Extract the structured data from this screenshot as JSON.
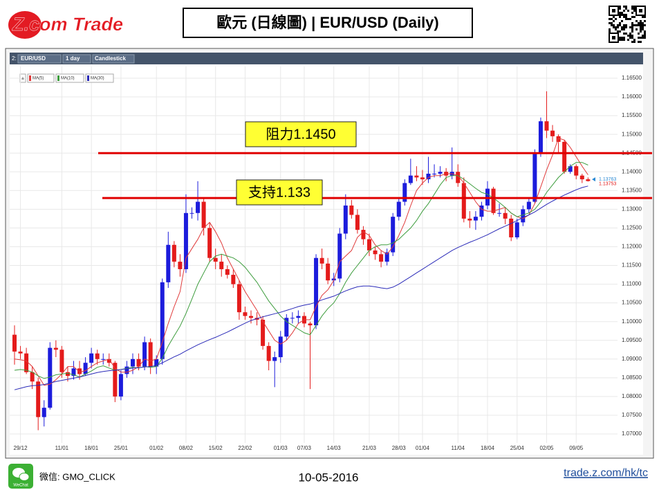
{
  "header": {
    "logo": "Z.com Trade",
    "title": "歐元 (日線圖) | EUR/USD (Daily)"
  },
  "footer": {
    "icon_label": "WeChat",
    "wechat": "微信: GMO_CLICK",
    "date": "10-05-2016",
    "url": "trade.z.com/hk/tc"
  },
  "chart_data": {
    "type": "candlestick",
    "toolbar": {
      "prefix": "2:",
      "symbol": "EUR/USD",
      "interval": "1 day",
      "style": "Candlestick"
    },
    "up_color": "#1c1cdc",
    "down_color": "#e41b1b",
    "grid": true,
    "categories": [
      null,
      "29/12",
      null,
      null,
      null,
      null,
      null,
      null,
      "11/01",
      null,
      null,
      null,
      null,
      "18/01",
      null,
      null,
      null,
      null,
      "25/01",
      null,
      null,
      null,
      null,
      null,
      "01/02",
      null,
      null,
      null,
      null,
      "08/02",
      null,
      null,
      null,
      null,
      "15/02",
      null,
      null,
      null,
      null,
      "22/02",
      null,
      null,
      null,
      null,
      null,
      "01/03",
      null,
      null,
      null,
      "07/03",
      null,
      null,
      null,
      null,
      "14/03",
      null,
      null,
      null,
      null,
      null,
      "21/03",
      null,
      null,
      null,
      null,
      "28/03",
      null,
      null,
      null,
      "01/04",
      null,
      null,
      null,
      null,
      null,
      "11/04",
      null,
      null,
      null,
      null,
      "18/04",
      null,
      null,
      null,
      null,
      "25/04",
      null,
      null,
      null,
      null,
      "02/05",
      null,
      null,
      null,
      null,
      "09/05",
      null,
      null
    ],
    "open": [
      1.0965,
      1.092,
      1.0915,
      1.0865,
      1.084,
      1.0745,
      1.077,
      1.093,
      1.0925,
      1.0865,
      1.0855,
      1.0875,
      1.086,
      1.089,
      1.0915,
      1.09,
      1.09,
      1.089,
      1.08,
      1.086,
      1.088,
      1.09,
      1.088,
      1.0945,
      1.088,
      1.09,
      1.1105,
      1.1205,
      1.116,
      1.114,
      1.129,
      1.129,
      1.132,
      1.125,
      1.117,
      1.116,
      1.114,
      1.1125,
      1.11,
      1.1025,
      1.1015,
      1.101,
      1.1005,
      1.0935,
      1.0895,
      1.0905,
      1.096,
      1.101,
      1.101,
      1.1015,
      1.0995,
      1.099,
      1.117,
      1.1155,
      1.111,
      1.1115,
      1.1235,
      1.131,
      1.1285,
      1.1245,
      1.122,
      1.119,
      1.118,
      1.116,
      1.1185,
      1.128,
      1.132,
      1.137,
      1.139,
      1.1385,
      1.138,
      1.1395,
      1.1395,
      1.14,
      1.139,
      1.14,
      1.137,
      1.1275,
      1.127,
      1.128,
      1.131,
      1.1355,
      1.129,
      1.129,
      1.1275,
      1.1225,
      1.1265,
      1.13,
      1.132,
      1.145,
      1.1535,
      1.151,
      1.1495,
      1.148,
      1.14,
      1.1415,
      1.139,
      1.138
    ],
    "high": [
      1.099,
      1.0935,
      1.093,
      1.088,
      1.085,
      1.079,
      1.0945,
      1.095,
      1.0935,
      1.088,
      1.0895,
      1.0895,
      1.0905,
      1.093,
      1.0925,
      1.0915,
      1.0915,
      1.0895,
      1.087,
      1.0895,
      1.0915,
      1.0915,
      1.096,
      1.0955,
      1.091,
      1.1115,
      1.124,
      1.1215,
      1.118,
      1.134,
      1.1305,
      1.1375,
      1.133,
      1.1265,
      1.1195,
      1.118,
      1.115,
      1.114,
      1.111,
      1.104,
      1.103,
      1.1025,
      1.1015,
      1.0945,
      1.092,
      1.0975,
      1.102,
      1.1025,
      1.103,
      1.1025,
      1.1,
      1.118,
      1.1195,
      1.117,
      1.113,
      1.125,
      1.134,
      1.1325,
      1.13,
      1.1255,
      1.1235,
      1.12,
      1.119,
      1.1195,
      1.129,
      1.133,
      1.138,
      1.1435,
      1.1415,
      1.1405,
      1.144,
      1.142,
      1.1415,
      1.141,
      1.1465,
      1.142,
      1.1385,
      1.1295,
      1.1295,
      1.132,
      1.1375,
      1.136,
      1.1315,
      1.1305,
      1.1285,
      1.1275,
      1.131,
      1.133,
      1.146,
      1.1545,
      1.1615,
      1.1525,
      1.15,
      1.1485,
      1.142,
      1.142,
      1.1395,
      1.1385
    ],
    "low": [
      1.0885,
      1.09,
      1.086,
      1.082,
      1.071,
      1.072,
      1.0765,
      1.0905,
      1.085,
      1.084,
      1.0845,
      1.0845,
      1.0855,
      1.0875,
      1.0885,
      1.0885,
      1.088,
      1.0785,
      1.079,
      1.085,
      1.086,
      1.087,
      1.087,
      1.086,
      1.086,
      1.0885,
      1.109,
      1.1145,
      1.112,
      1.113,
      1.1275,
      1.127,
      1.123,
      1.116,
      1.114,
      1.112,
      1.1115,
      1.109,
      1.1005,
      1.1005,
      1.0995,
      1.099,
      1.0925,
      1.087,
      1.0825,
      1.089,
      1.095,
      1.0995,
      1.0995,
      1.0985,
      1.082,
      1.098,
      1.114,
      1.11,
      1.1095,
      1.1105,
      1.122,
      1.1275,
      1.1235,
      1.1205,
      1.1175,
      1.1165,
      1.1145,
      1.115,
      1.1175,
      1.127,
      1.131,
      1.1365,
      1.1375,
      1.1365,
      1.137,
      1.1385,
      1.1385,
      1.1375,
      1.138,
      1.136,
      1.1265,
      1.125,
      1.1245,
      1.127,
      1.13,
      1.1285,
      1.128,
      1.126,
      1.1215,
      1.122,
      1.1255,
      1.129,
      1.1315,
      1.144,
      1.149,
      1.148,
      1.145,
      1.1395,
      1.1395,
      1.138,
      1.137,
      1.1374
    ],
    "close": [
      1.092,
      1.0915,
      1.0865,
      1.084,
      1.0745,
      1.077,
      1.093,
      1.0925,
      1.0865,
      1.0855,
      1.0875,
      1.086,
      1.089,
      1.0915,
      1.09,
      1.09,
      1.089,
      1.08,
      1.086,
      1.088,
      1.09,
      1.088,
      1.0945,
      1.088,
      1.09,
      1.1105,
      1.1205,
      1.116,
      1.114,
      1.129,
      1.129,
      1.132,
      1.125,
      1.117,
      1.116,
      1.114,
      1.1125,
      1.11,
      1.1025,
      1.1015,
      1.101,
      1.1005,
      1.0935,
      1.0895,
      1.0905,
      1.096,
      1.101,
      1.101,
      1.1015,
      1.0995,
      1.099,
      1.117,
      1.1155,
      1.111,
      1.1115,
      1.1235,
      1.131,
      1.1285,
      1.1245,
      1.122,
      1.119,
      1.118,
      1.116,
      1.1185,
      1.128,
      1.132,
      1.137,
      1.139,
      1.1385,
      1.138,
      1.1395,
      1.1395,
      1.14,
      1.139,
      1.14,
      1.137,
      1.1275,
      1.127,
      1.128,
      1.131,
      1.1355,
      1.129,
      1.129,
      1.1275,
      1.1225,
      1.1265,
      1.13,
      1.132,
      1.145,
      1.1535,
      1.151,
      1.1495,
      1.148,
      1.14,
      1.1415,
      1.139,
      1.138,
      1.13753
    ],
    "series": [
      {
        "name": "MA(5)",
        "color": "#e03a3a",
        "values": [
          1.09,
          1.0898,
          1.0895,
          1.088,
          1.0855,
          1.083,
          1.0833,
          1.0845,
          1.086,
          1.088,
          1.088,
          1.0865,
          1.0869,
          1.088,
          1.089,
          1.0895,
          1.09,
          1.0875,
          1.0865,
          1.0865,
          1.087,
          1.088,
          1.09,
          1.0895,
          1.09,
          1.0945,
          1.0995,
          1.104,
          1.108,
          1.117,
          1.1195,
          1.122,
          1.125,
          1.1265,
          1.124,
          1.121,
          1.117,
          1.114,
          1.111,
          1.108,
          1.1055,
          1.103,
          1.1,
          1.0975,
          1.095,
          1.094,
          1.095,
          1.097,
          1.0995,
          1.1005,
          1.1005,
          1.104,
          1.107,
          1.1085,
          1.111,
          1.116,
          1.1175,
          1.119,
          1.1225,
          1.124,
          1.123,
          1.1205,
          1.119,
          1.118,
          1.12,
          1.123,
          1.1265,
          1.131,
          1.135,
          1.137,
          1.1385,
          1.139,
          1.139,
          1.1395,
          1.1395,
          1.139,
          1.137,
          1.1345,
          1.132,
          1.13,
          1.1295,
          1.1295,
          1.13,
          1.1305,
          1.129,
          1.128,
          1.1275,
          1.1285,
          1.1315,
          1.136,
          1.1405,
          1.1445,
          1.149,
          1.1485,
          1.1465,
          1.144,
          1.1415,
          1.1392
        ]
      },
      {
        "name": "MA(10)",
        "color": "#3c9c3c",
        "values": [
          1.087,
          1.0872,
          1.087,
          1.0865,
          1.0855,
          1.0848,
          1.0852,
          1.0858,
          1.086,
          1.0862,
          1.0858,
          1.0852,
          1.086,
          1.0868,
          1.0878,
          1.0882,
          1.0876,
          1.087,
          1.0872,
          1.0875,
          1.0878,
          1.0876,
          1.088,
          1.0878,
          1.088,
          1.0902,
          1.0935,
          1.0962,
          1.0988,
          1.1022,
          1.106,
          1.11,
          1.113,
          1.116,
          1.1175,
          1.118,
          1.1175,
          1.117,
          1.116,
          1.1145,
          1.1125,
          1.1105,
          1.108,
          1.1055,
          1.1035,
          1.1015,
          1.1,
          1.099,
          1.098,
          1.097,
          1.0965,
          1.099,
          1.1015,
          1.1035,
          1.105,
          1.1075,
          1.1105,
          1.113,
          1.115,
          1.117,
          1.119,
          1.12,
          1.1205,
          1.1205,
          1.121,
          1.122,
          1.1235,
          1.125,
          1.127,
          1.1295,
          1.1315,
          1.134,
          1.1365,
          1.1385,
          1.139,
          1.139,
          1.138,
          1.1368,
          1.1356,
          1.1345,
          1.134,
          1.133,
          1.1318,
          1.1305,
          1.129,
          1.128,
          1.1285,
          1.129,
          1.13,
          1.132,
          1.1345,
          1.1365,
          1.1385,
          1.14,
          1.1415,
          1.1425,
          1.1425,
          1.1418
        ]
      },
      {
        "name": "MA(30)",
        "color": "#2a2ab8",
        "values": [
          1.0818,
          1.0822,
          1.0826,
          1.0829,
          1.083,
          1.0832,
          1.0836,
          1.084,
          1.0843,
          1.0846,
          1.0849,
          1.0852,
          1.0856,
          1.086,
          1.0864,
          1.0867,
          1.0869,
          1.087,
          1.0872,
          1.0874,
          1.0876,
          1.0877,
          1.0879,
          1.088,
          1.0883,
          1.089,
          1.0898,
          1.0906,
          1.0913,
          1.0922,
          1.093,
          1.0938,
          1.0945,
          1.0952,
          1.0958,
          1.0965,
          1.0972,
          1.098,
          1.0988,
          1.0996,
          1.1003,
          1.1008,
          1.1013,
          1.1017,
          1.1021,
          1.1025,
          1.103,
          1.1035,
          1.104,
          1.1044,
          1.1047,
          1.1052,
          1.1058,
          1.1063,
          1.1068,
          1.1075,
          1.1082,
          1.1088,
          1.1093,
          1.1095,
          1.1095,
          1.1093,
          1.109,
          1.1088,
          1.1092,
          1.11,
          1.111,
          1.112,
          1.113,
          1.114,
          1.115,
          1.116,
          1.117,
          1.118,
          1.119,
          1.1198,
          1.1205,
          1.1212,
          1.1218,
          1.1225,
          1.1232,
          1.124,
          1.1248,
          1.1255,
          1.1262,
          1.127,
          1.1278,
          1.1285,
          1.1293,
          1.1303,
          1.1313,
          1.1322,
          1.133,
          1.1338,
          1.1345,
          1.1352,
          1.1358,
          1.1362
        ]
      }
    ],
    "ylim": [
      1.0676,
      1.1674
    ],
    "yticks": [
      {
        "value": 1.07,
        "label": "1.07000"
      },
      {
        "value": 1.075,
        "label": "1.07500"
      },
      {
        "value": 1.08,
        "label": "1.08000"
      },
      {
        "value": 1.085,
        "label": "1.08500"
      },
      {
        "value": 1.09,
        "label": "1.09000"
      },
      {
        "value": 1.095,
        "label": "1.09500"
      },
      {
        "value": 1.1,
        "label": "1.10000"
      },
      {
        "value": 1.105,
        "label": "1.10500"
      },
      {
        "value": 1.11,
        "label": "1.11000"
      },
      {
        "value": 1.115,
        "label": "1.11500"
      },
      {
        "value": 1.12,
        "label": "1.12000"
      },
      {
        "value": 1.125,
        "label": "1.12500"
      },
      {
        "value": 1.13,
        "label": "1.13000"
      },
      {
        "value": 1.135,
        "label": "1.13500"
      },
      {
        "value": 1.14,
        "label": "1.14000"
      },
      {
        "value": 1.145,
        "label": "1.14500"
      },
      {
        "value": 1.15,
        "label": "1.15000"
      },
      {
        "value": 1.155,
        "label": "1.15500"
      },
      {
        "value": 1.16,
        "label": "1.16000"
      },
      {
        "value": 1.165,
        "label": "1.16500"
      }
    ],
    "levels": [
      {
        "label": "阻力1.1450",
        "value": 1.145,
        "color": "#e00000"
      },
      {
        "label": "支持1.133",
        "value": 1.133,
        "color": "#e00000"
      }
    ],
    "price_markers": [
      {
        "value": 1.13763,
        "color": "#2a8ad4"
      },
      {
        "value": 1.13753,
        "color": "#e01010"
      }
    ]
  }
}
